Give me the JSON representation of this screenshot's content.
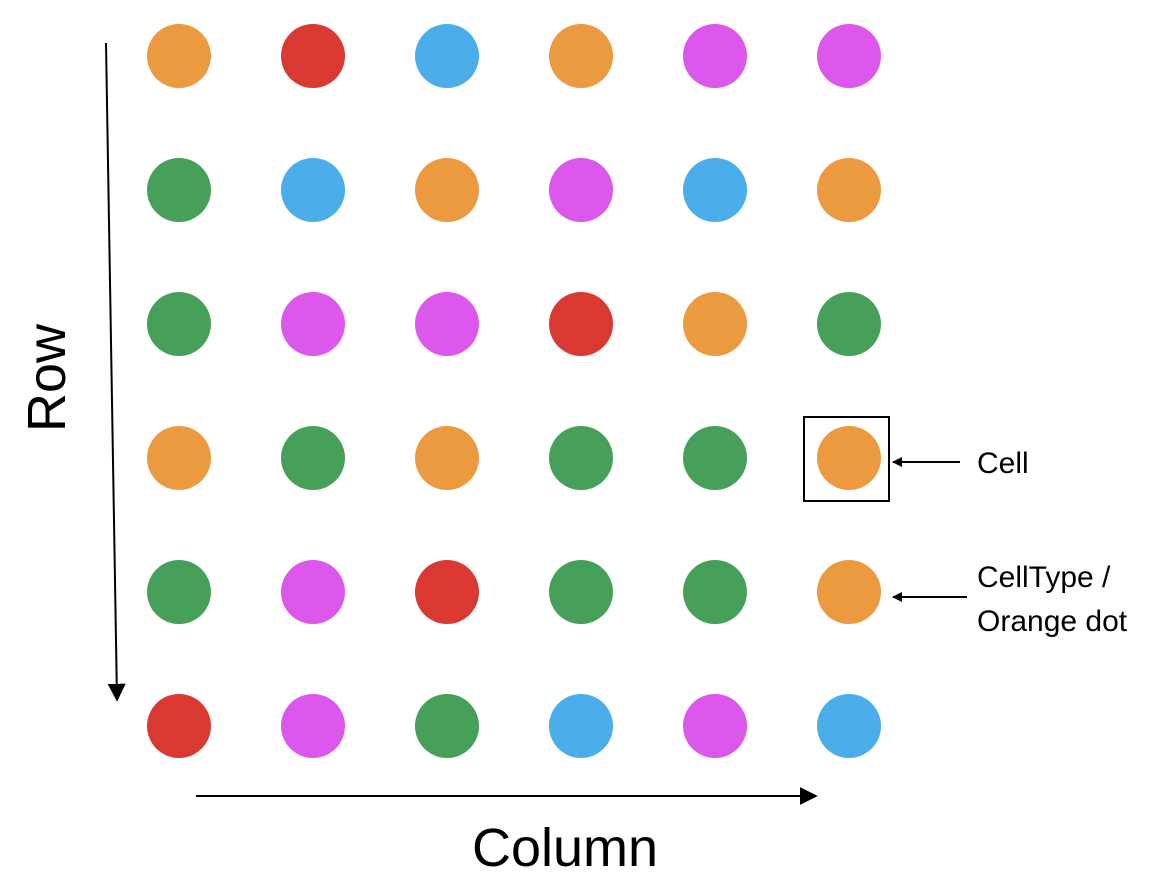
{
  "labels": {
    "row_axis": "Row",
    "column_axis": "Column",
    "cell_annotation": "Cell",
    "celltype_line1": "CellType /",
    "celltype_line2": "Orange dot"
  },
  "colors": {
    "orange": "#EB9A3F",
    "red": "#DA3932",
    "blue": "#4BADEA",
    "magenta": "#DC57EC",
    "green": "#47A05A"
  },
  "grid": [
    [
      "orange",
      "red",
      "blue",
      "orange",
      "magenta",
      "magenta"
    ],
    [
      "green",
      "blue",
      "orange",
      "magenta",
      "blue",
      "orange"
    ],
    [
      "green",
      "magenta",
      "magenta",
      "red",
      "orange",
      "green"
    ],
    [
      "orange",
      "green",
      "orange",
      "green",
      "green",
      "orange"
    ],
    [
      "green",
      "magenta",
      "red",
      "green",
      "green",
      "orange"
    ],
    [
      "red",
      "magenta",
      "green",
      "blue",
      "magenta",
      "blue"
    ]
  ]
}
